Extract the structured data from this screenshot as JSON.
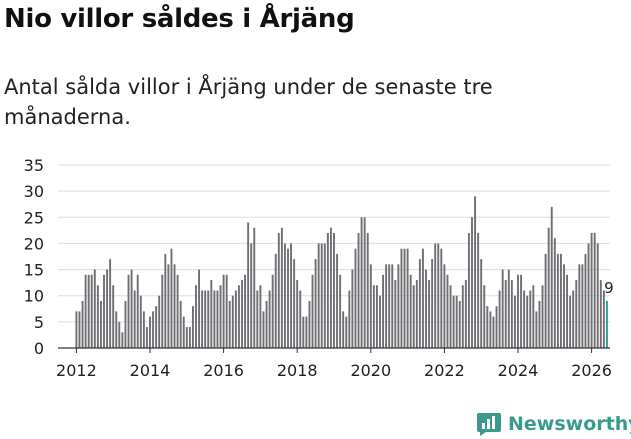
{
  "title": "Nio villor såldes i Årjäng",
  "subtitle": "Antal sålda villor i Årjäng under de senaste tre månaderna.",
  "logo": {
    "text": "Newsworthy",
    "icon": "newsworthy-logo-icon",
    "color": "#3a9b8c"
  },
  "colors": {
    "bar": "#6e6e73",
    "highlight": "#2a9d8f",
    "grid": "#dddddd",
    "axis": "#333333"
  },
  "chart_data": {
    "type": "bar",
    "title": "Nio villor såldes i Årjäng",
    "xlabel": "",
    "ylabel": "",
    "ylim": [
      0,
      35
    ],
    "yticks": [
      0,
      5,
      10,
      15,
      20,
      25,
      30,
      35
    ],
    "xlim": [
      2011.5,
      2026.5
    ],
    "xticks": [
      2012,
      2014,
      2016,
      2018,
      2020,
      2022,
      2024,
      2026
    ],
    "start": {
      "year": 2012,
      "month": 1
    },
    "grid": true,
    "legend": "none",
    "series": [
      {
        "name": "Antal sålda villor (senaste tre månaderna)",
        "values": [
          7,
          7,
          9,
          14,
          14,
          14,
          15,
          12,
          9,
          14,
          15,
          17,
          12,
          7,
          5,
          3,
          9,
          14,
          15,
          11,
          14,
          10,
          7,
          4,
          6,
          7,
          8,
          10,
          14,
          18,
          16,
          19,
          16,
          14,
          9,
          6,
          4,
          4,
          8,
          12,
          15,
          11,
          11,
          11,
          13,
          11,
          11,
          12,
          14,
          14,
          9,
          10,
          11,
          12,
          13,
          14,
          24,
          20,
          23,
          11,
          12,
          7,
          9,
          11,
          14,
          18,
          22,
          23,
          20,
          19,
          20,
          17,
          13,
          11,
          6,
          6,
          9,
          14,
          17,
          20,
          20,
          20,
          22,
          23,
          22,
          18,
          14,
          7,
          6,
          11,
          15,
          19,
          22,
          25,
          25,
          22,
          16,
          12,
          12,
          10,
          14,
          16,
          16,
          16,
          13,
          16,
          19,
          19,
          19,
          14,
          12,
          13,
          17,
          19,
          15,
          13,
          17,
          20,
          20,
          19,
          16,
          14,
          12,
          10,
          10,
          9,
          12,
          13,
          22,
          25,
          29,
          22,
          17,
          12,
          8,
          7,
          6,
          8,
          11,
          15,
          13,
          15,
          13,
          10,
          14,
          14,
          11,
          10,
          11,
          12,
          7,
          9,
          12,
          18,
          23,
          27,
          21,
          18,
          18,
          16,
          14,
          10,
          11,
          13,
          16,
          16,
          18,
          20,
          22,
          22,
          20,
          13,
          11,
          9
        ],
        "last_label": "9"
      }
    ]
  }
}
